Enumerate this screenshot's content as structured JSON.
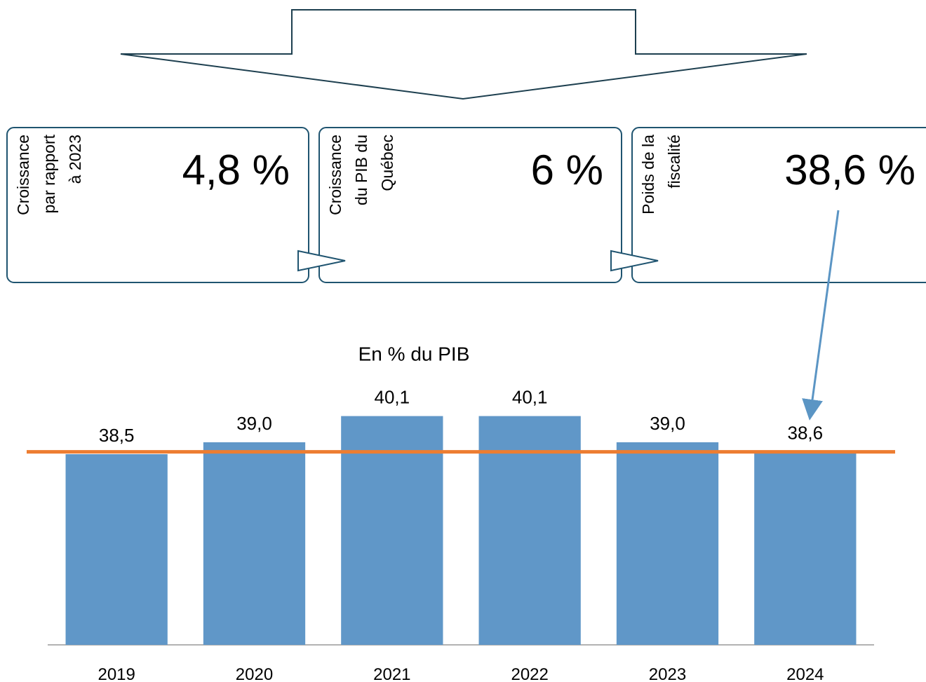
{
  "boxes": [
    {
      "label_lines": [
        "Croissance",
        "par rapport",
        "à 2023"
      ],
      "value": "4,8 %"
    },
    {
      "label_lines": [
        "Croissance",
        "du PIB du",
        "Québec"
      ],
      "value": "6 %"
    },
    {
      "label_lines": [
        "Poids de la",
        "fiscalité"
      ],
      "value": "38,6 %"
    }
  ],
  "chart_data": {
    "type": "bar",
    "subtitle": "En % du PIB",
    "categories": [
      "2019",
      "2020",
      "2021",
      "2022",
      "2023",
      "2024"
    ],
    "values": [
      38.5,
      39.0,
      40.1,
      40.1,
      39.0,
      38.6
    ],
    "value_labels": [
      "38,5",
      "39,0",
      "40,1",
      "40,1",
      "39,0",
      "38,6"
    ],
    "color": "#6097c8",
    "ylim": [
      30.5,
      42
    ],
    "reference_line": {
      "value": 38.6,
      "color": "#ed7d31"
    }
  }
}
